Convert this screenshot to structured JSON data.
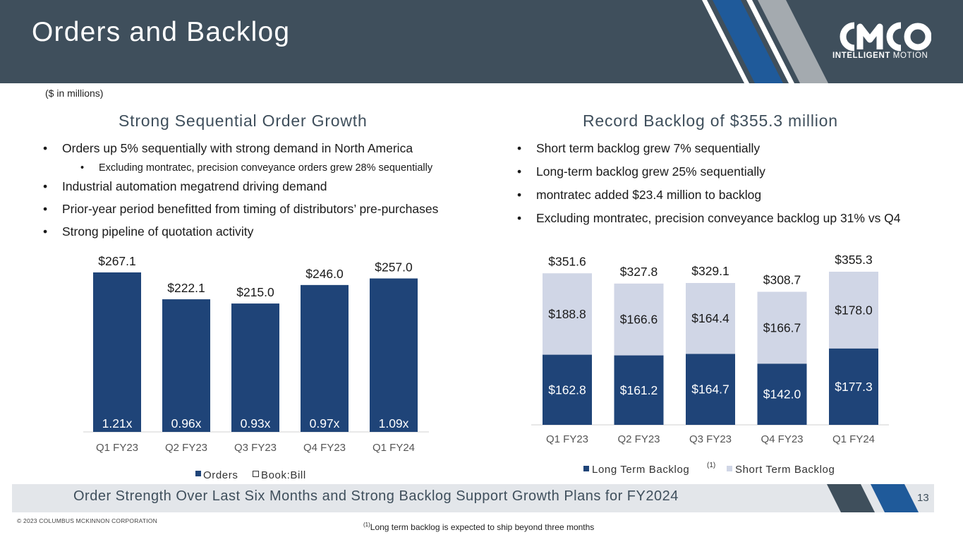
{
  "header": {
    "title": "Orders and Backlog",
    "logo_word": "CMCO",
    "logo_tag_bold": "INTELLIGENT",
    "logo_tag_light": " MOTION"
  },
  "units_note": "($ in millions)",
  "left": {
    "heading": "Strong Sequential Order Growth",
    "bullets": [
      "Orders up 5% sequentially with strong demand in North America",
      "Excluding montratec, precision conveyance orders grew 28% sequentially",
      "Industrial automation megatrend driving demand",
      "Prior-year period benefitted from timing of distributors’ pre-purchases",
      "Strong pipeline of quotation activity"
    ]
  },
  "right": {
    "heading": "Record Backlog of $355.3 million",
    "bullets": [
      "Short term backlog grew 7% sequentially",
      "Long-term backlog grew 25% sequentially",
      "montratec added $23.4 million to backlog",
      "Excluding montratec, precision conveyance backlog up 31% vs Q4"
    ]
  },
  "chart_data": [
    {
      "type": "bar",
      "categories": [
        "Q1 FY23",
        "Q2 FY23",
        "Q3 FY23",
        "Q4 FY23",
        "Q1 FY24"
      ],
      "series": [
        {
          "name": "Orders",
          "values": [
            267.1,
            222.1,
            215.0,
            246.0,
            257.0
          ],
          "labels": [
            "$267.1",
            "$222.1",
            "$215.0",
            "$246.0",
            "$257.0"
          ]
        },
        {
          "name": "Book:Bill",
          "values": [
            1.21,
            0.96,
            0.93,
            0.97,
            1.09
          ],
          "labels": [
            "1.21x",
            "0.96x",
            "0.93x",
            "0.97x",
            "1.09x"
          ]
        }
      ],
      "ylim": [
        0,
        300
      ],
      "grid": false,
      "legend": "bottom",
      "colors": {
        "orders": "#1f4478",
        "book_bill": "#ffffff"
      }
    },
    {
      "type": "bar",
      "stacked": true,
      "categories": [
        "Q1 FY23",
        "Q2 FY23",
        "Q3 FY23",
        "Q4 FY23",
        "Q1 FY24"
      ],
      "series": [
        {
          "name": "Long Term Backlog",
          "name_note": "(1)",
          "values": [
            162.8,
            161.2,
            164.7,
            142.0,
            177.3
          ],
          "labels": [
            "$162.8",
            "$161.2",
            "$164.7",
            "$142.0",
            "$177.3"
          ]
        },
        {
          "name": "Short Term Backlog",
          "values": [
            188.8,
            166.6,
            164.4,
            166.7,
            178.0
          ],
          "labels": [
            "$188.8",
            "$166.6",
            "$164.4",
            "$166.7",
            "$178.0"
          ]
        }
      ],
      "totals": [
        351.6,
        327.8,
        329.1,
        308.7,
        355.3
      ],
      "total_labels": [
        "$351.6",
        "$327.8",
        "$329.1",
        "$308.7",
        "$355.3"
      ],
      "ylim": [
        0,
        400
      ],
      "grid": false,
      "legend": "bottom",
      "colors": {
        "long": "#1f4478",
        "short": "#d0d6e6"
      }
    }
  ],
  "footer": {
    "message": "Order Strength Over Last Six Months and Strong Backlog Support Growth Plans for FY2024",
    "page_number": "13",
    "copyright": "© 2023 COLUMBUS MCKINNON CORPORATION",
    "footnote_mark": "(1)",
    "footnote_text": "Long term backlog is expected to ship beyond three months"
  },
  "colors": {
    "header": "#3f4f5c",
    "accent_blue": "#1f5a9a",
    "accent_gray": "#a4aaaf",
    "footer_band": "#e3e6ea"
  }
}
